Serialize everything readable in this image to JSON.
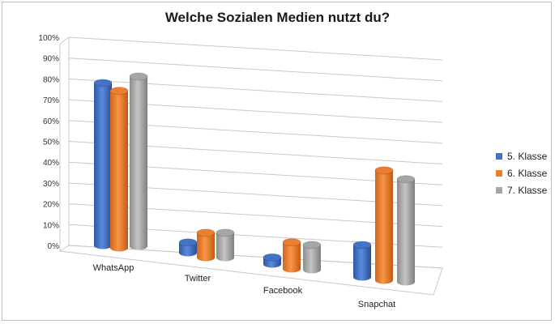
{
  "chart_data": {
    "type": "bar",
    "title": "Welche Sozialen Medien nutzt du?",
    "categories": [
      "WhatsApp",
      "Twitter",
      "Facebook",
      "Snapchat"
    ],
    "series": [
      {
        "name": "5. Klasse",
        "color": "#4472c4",
        "values": [
          87,
          3,
          1,
          15
        ]
      },
      {
        "name": "6. Klasse",
        "color": "#ed7d31",
        "values": [
          84,
          11,
          12,
          58
        ]
      },
      {
        "name": "7. Klasse",
        "color": "#a5a5a5",
        "values": [
          91,
          11,
          11,
          54
        ]
      }
    ],
    "y_ticks": [
      "0%",
      "10%",
      "20%",
      "30%",
      "40%",
      "50%",
      "60%",
      "70%",
      "80%",
      "90%",
      "100%"
    ],
    "ylim": [
      0,
      100
    ],
    "grid": true,
    "legend_position": "right"
  }
}
